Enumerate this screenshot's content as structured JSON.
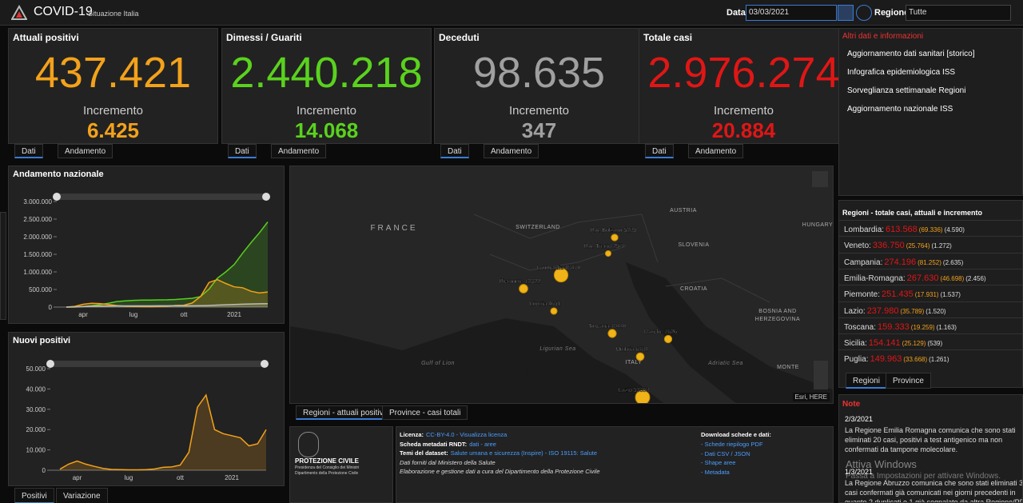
{
  "header": {
    "title": "COVID-19",
    "subtitle": "Situazione Italia",
    "date_label": "Data",
    "date": "03/03/2021",
    "region_label": "Regione",
    "region": "Tutte"
  },
  "cards": [
    {
      "title": "Attuali positivi",
      "value": "437.421",
      "increment_label": "Incremento",
      "increment": "6.425",
      "color": "#f3a21b",
      "tabs": [
        "Dati",
        "Andamento"
      ]
    },
    {
      "title": "Dimessi / Guariti",
      "value": "2.440.218",
      "increment_label": "Incremento",
      "increment": "14.068",
      "color": "#5ad21e",
      "tabs": [
        "Dati",
        "Andamento"
      ]
    },
    {
      "title": "Deceduti",
      "value": "98.635",
      "increment_label": "Incremento",
      "increment": "347",
      "color": "#a0a0a0",
      "tabs": [
        "Dati",
        "Andamento"
      ]
    },
    {
      "title": "Totale casi",
      "value": "2.976.274",
      "increment_label": "Incremento",
      "increment": "20.884",
      "color": "#e01616",
      "tabs": [
        "Dati",
        "Andamento"
      ]
    }
  ],
  "info": {
    "title": "Altri dati e informazioni",
    "links": [
      "Aggiornamento dati sanitari [storico]",
      "Infografica epidemiologica ISS",
      "Sorveglianza settimanale Regioni",
      "Aggiornamento nazionale ISS"
    ]
  },
  "regions": {
    "title": "Regioni - totale casi, attuali e incremento",
    "rows": [
      [
        "Lombardia:",
        "613.568",
        "(69.336)",
        "(4.590)"
      ],
      [
        "Veneto:",
        "336.750",
        "(25.764)",
        "(1.272)"
      ],
      [
        "Campania:",
        "274.196",
        "(81.252)",
        "(2.635)"
      ],
      [
        "Emilia-Romagna:",
        "267.630",
        "(46.698)",
        "(2.456)"
      ],
      [
        "Piemonte:",
        "251.435",
        "(17.931)",
        "(1.537)"
      ],
      [
        "Lazio:",
        "237.980",
        "(35.789)",
        "(1.520)"
      ],
      [
        "Toscana:",
        "159.333",
        "(19.259)",
        "(1.163)"
      ],
      [
        "Sicilia:",
        "154.141",
        "(25.129)",
        "(539)"
      ],
      [
        "Puglia:",
        "149.963",
        "(33.668)",
        "(1.261)"
      ]
    ],
    "tabs": [
      "Regioni",
      "Province"
    ]
  },
  "notes": {
    "title": "Note",
    "items": [
      {
        "date": "2/3/2021",
        "text": "La Regione Emilia Romagna comunica che sono stati eliminati 20 casi, positivi a test antigenico ma non confermati da tampone molecolare."
      },
      {
        "date": "1/3/2021",
        "text": "La Regione Abruzzo comunica che sono stati eliminati 3 casi confermati già comunicati nei giorni precedenti in quanto 2 duplicati e 1 già segnalato da altra Regione/PPAA. La"
      }
    ]
  },
  "map": {
    "places": [
      "FRANCE",
      "SWITZERLAND",
      "AUSTRIA",
      "HUNGARY",
      "SLOVENIA",
      "CROATIA",
      "BOSNIA AND",
      "HERZEGOVINA",
      "ITALY",
      "MONTE",
      "Ligurian Sea",
      "Gulf of Lion",
      "Adriatic Sea"
    ],
    "points": [
      {
        "name": "P.A. Bolzano",
        "value": 5289
      },
      {
        "name": "P.A. Trento",
        "value": 2570
      },
      {
        "name": "Lombardia",
        "value": 48470
      },
      {
        "name": "Piemonte",
        "value": 12322
      },
      {
        "name": "Liguria",
        "value": 4651
      },
      {
        "name": "Toscana",
        "value": 10440
      },
      {
        "name": "Marche",
        "value": 7626
      },
      {
        "name": "Umbria",
        "value": 8784
      },
      {
        "name": "Lazio",
        "value": 53358
      }
    ],
    "attribution": "Esri, HERE",
    "tabs": [
      "Regioni - attuali positivi",
      "Province - casi totali"
    ]
  },
  "footer": {
    "logo_title": "PROTEZIONE CIVILE",
    "logo_sub": [
      "Presidenza del Consiglio dei Ministri",
      "Dipartimento della Protezione Civile"
    ],
    "lines": [
      {
        "label": "Licenza:",
        "text": "CC-BY-4.0 - Visualizza licenza"
      },
      {
        "label": "Scheda metadati RNDT:",
        "text": "dati - aree"
      },
      {
        "label": "Temi del dataset:",
        "text": "Salute umana e sicurezza (Inspire) - ISO 19115: Salute"
      },
      {
        "label": "",
        "text": "Dati forniti dal Ministero della Salute"
      },
      {
        "label": "",
        "text": "Elaborazione e gestione dati a cura del Dipartimento della Protezione Civile"
      }
    ],
    "download_title": "Download schede e dati:",
    "downloads": [
      "- Schede riepilogo PDF",
      "- Dati CSV / JSON",
      "- Shape aree",
      "- Metadata"
    ]
  },
  "watermark": {
    "title": "Attiva Windows",
    "text": "Passa a Impostazioni per attivare Windows."
  },
  "chart_data": [
    {
      "type": "line",
      "title": "Andamento nazionale",
      "categories": [
        null,
        null,
        "apr",
        null,
        null,
        null,
        null,
        null,
        "lug",
        null,
        null,
        null,
        null,
        null,
        "ott",
        null,
        null,
        null,
        null,
        null,
        "2021",
        null,
        null,
        null,
        null
      ],
      "series": [
        {
          "color": "#56d11d",
          "values": [
            50,
            1900,
            16000,
            38000,
            68000,
            110000,
            157000,
            178000,
            190000,
            197000,
            200000,
            205000,
            207000,
            217000,
            231000,
            250000,
            300000,
            510000,
            820000,
            1000000,
            1210000,
            1530000,
            1830000,
            2110000,
            2420000
          ]
        },
        {
          "color": "#f3a21b",
          "values": [
            1000,
            20000,
            80000,
            106000,
            101000,
            72000,
            43000,
            24000,
            16000,
            12500,
            12400,
            15000,
            26000,
            45000,
            52000,
            116000,
            300000,
            700000,
            780000,
            670000,
            575000,
            550000,
            450000,
            400000,
            430000
          ]
        },
        {
          "color": "#bbbbbb",
          "values": [
            30,
            1800,
            13000,
            22000,
            28000,
            31500,
            33400,
            34300,
            34700,
            35000,
            35100,
            35400,
            35500,
            35700,
            36000,
            36500,
            39000,
            45000,
            56000,
            66000,
            74000,
            82000,
            88000,
            93000,
            98000
          ]
        }
      ],
      "ylim": [
        0,
        3000000
      ],
      "yticks": [
        0,
        {
          "value": 500000,
          "label": "500.000"
        },
        {
          "value": 1000000,
          "label": "1.000.000"
        },
        {
          "value": 1500000,
          "label": "1.500.000"
        },
        {
          "value": 2000000,
          "label": "2.000.000"
        },
        {
          "value": 2500000,
          "label": "2.500.000"
        },
        {
          "value": 3000000,
          "label": "3.000.000"
        }
      ]
    },
    {
      "type": "line",
      "title": "Nuovi positivi",
      "categories": [
        null,
        null,
        "apr",
        null,
        null,
        null,
        null,
        null,
        "lug",
        null,
        null,
        null,
        null,
        null,
        "ott",
        null,
        null,
        null,
        null,
        null,
        "2021",
        null,
        null,
        null,
        null
      ],
      "series": [
        {
          "color": "#f3a21b",
          "values": [
            500,
            3000,
            4500,
            3000,
            1900,
            900,
            400,
            300,
            200,
            200,
            300,
            600,
            1400,
            1600,
            2500,
            8800,
            31000,
            37000,
            20000,
            18000,
            17000,
            16000,
            12000,
            13000,
            20000
          ]
        }
      ],
      "ylim": [
        0,
        50000
      ],
      "yticks": [
        0,
        {
          "value": 10000,
          "label": "10.000"
        },
        {
          "value": 20000,
          "label": "20.000"
        },
        {
          "value": 30000,
          "label": "30.000"
        },
        {
          "value": 40000,
          "label": "40.000"
        },
        {
          "value": 50000,
          "label": "50.000"
        }
      ],
      "tabs": [
        "Positivi",
        "Variazione"
      ]
    }
  ]
}
